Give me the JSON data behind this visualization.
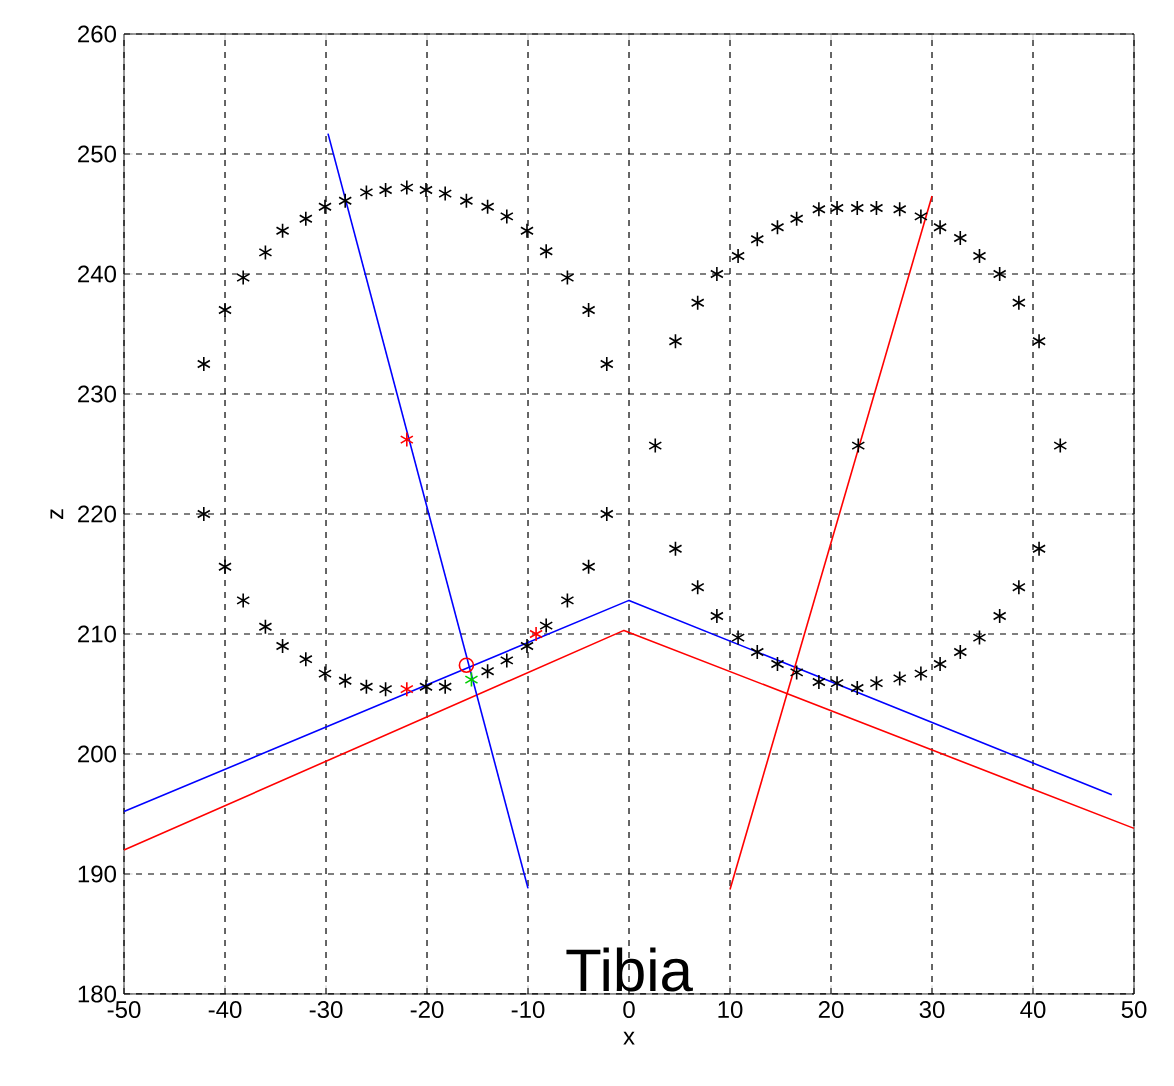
{
  "chart_data": {
    "type": "scatter",
    "xlabel": "x",
    "ylabel": "z",
    "annotations": [
      "Tibia"
    ],
    "xlim": [
      -50,
      50
    ],
    "ylim": [
      180,
      260
    ],
    "xticks": [
      -50,
      -40,
      -30,
      -20,
      -10,
      0,
      10,
      20,
      30,
      40,
      50
    ],
    "yticks": [
      180,
      190,
      200,
      210,
      220,
      230,
      240,
      250,
      260
    ],
    "grid": true,
    "marker": "cross",
    "series": [
      {
        "color": "#000000",
        "x": [
          -42.1,
          -40,
          -38.2,
          -36,
          -34.3,
          -32,
          -30.1,
          -28.1,
          -26,
          -24.1,
          -22,
          -20.1,
          -18.2,
          -16.1,
          -14,
          -12.1,
          -10.1,
          -8.2,
          -6.1,
          -4,
          -2.2,
          -42.1,
          -40,
          -38.2,
          -36,
          -34.3,
          -32,
          -30.1,
          -28.1,
          -26,
          -24.1,
          -20.1,
          -18.2,
          -14,
          -12.1,
          -10.1,
          -8.2,
          -6.1,
          -4,
          -2.2,
          2.6,
          4.6,
          6.8,
          8.7,
          10.8,
          12.7,
          14.7,
          16.6,
          18.8,
          20.6,
          22.6,
          24.5,
          26.8,
          28.9,
          30.8,
          32.8,
          34.7,
          36.7,
          38.6,
          40.6,
          42.7,
          22.7,
          4.6,
          6.8,
          8.7,
          10.8,
          12.7,
          14.7,
          16.6,
          18.8,
          20.6,
          22.6,
          24.5,
          26.8,
          28.9,
          30.8,
          32.8,
          34.7,
          36.7,
          38.6,
          40.6
        ],
        "values": [
          232.5,
          237,
          239.7,
          241.8,
          243.6,
          244.6,
          245.6,
          246.1,
          246.8,
          247,
          247.2,
          247,
          246.7,
          246.1,
          245.6,
          244.8,
          243.6,
          241.9,
          239.7,
          237,
          232.5,
          220,
          215.6,
          212.8,
          210.6,
          209,
          207.9,
          206.7,
          206.1,
          205.6,
          205.4,
          205.6,
          205.6,
          206.9,
          207.8,
          209,
          210.7,
          212.8,
          215.6,
          220,
          225.7,
          234.4,
          237.6,
          240,
          241.5,
          242.9,
          243.9,
          244.6,
          245.4,
          245.5,
          245.5,
          245.5,
          245.4,
          244.8,
          243.9,
          243,
          241.5,
          240,
          237.6,
          234.4,
          225.7,
          225.7,
          217.1,
          213.9,
          211.5,
          209.7,
          208.5,
          207.5,
          206.8,
          206,
          205.9,
          205.5,
          205.9,
          206.3,
          206.7,
          207.5,
          208.5,
          209.7,
          211.5,
          213.9,
          217.1
        ]
      },
      {
        "type": "line",
        "marker": "none",
        "color": "#0000ff",
        "x": [
          -50,
          0,
          47.8
        ],
        "values": [
          195.2,
          212.8,
          196.6
        ]
      },
      {
        "type": "line",
        "marker": "none",
        "color": "#ff0000",
        "x": [
          -50,
          -0.5,
          50
        ],
        "values": [
          192,
          210.3,
          193.8
        ]
      },
      {
        "type": "line",
        "marker": "none",
        "color": "#0000ff",
        "x": [
          -29.8,
          -10
        ],
        "values": [
          251.7,
          188.8
        ]
      },
      {
        "type": "line",
        "marker": "none",
        "color": "#ff0000",
        "x": [
          10,
          30
        ],
        "values": [
          188.7,
          246.5
        ]
      },
      {
        "color": "#ff0000",
        "x": [
          -22,
          -22,
          -9.2
        ],
        "values": [
          226.2,
          205.4,
          210
        ]
      },
      {
        "color": "#00cc00",
        "x": [
          -15.6
        ],
        "values": [
          206.2
        ]
      },
      {
        "type": "scatter",
        "marker": "circle",
        "color": "#ff0000",
        "x": [
          -16.1
        ],
        "values": [
          207.4
        ]
      }
    ]
  }
}
